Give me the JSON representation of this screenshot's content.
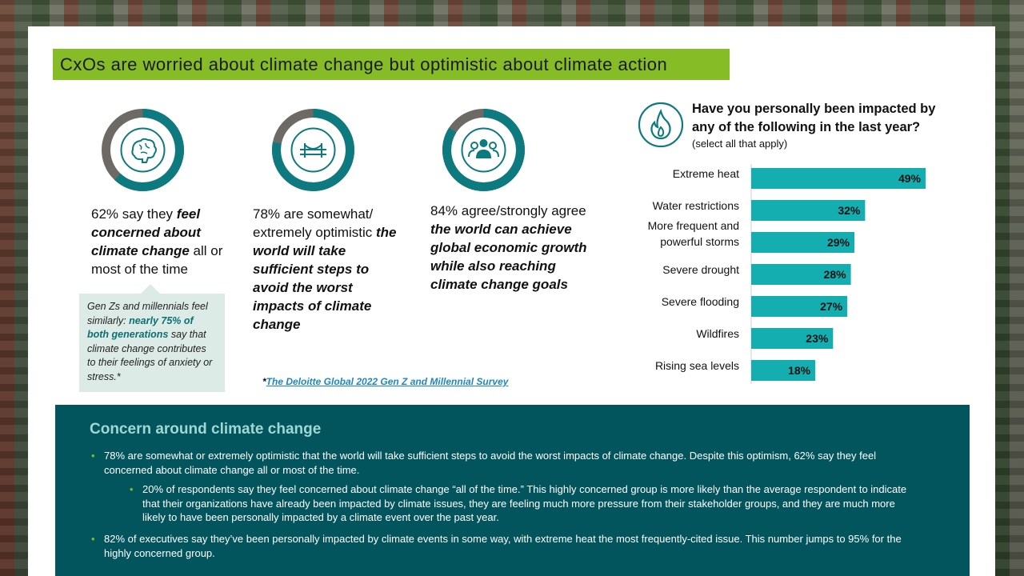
{
  "title": "CxOs are worried about climate change but optimistic about climate action",
  "stats": [
    {
      "pre": "62% say they ",
      "bold": "feel concerned about climate change",
      "post": " all or most of the time",
      "value": 0.62,
      "icon": "brain-icon"
    },
    {
      "pre": "78% are somewhat/ extremely optimistic ",
      "bold": "the world will take sufficient steps to avoid the worst impacts of climate change",
      "post": "",
      "value": 0.78,
      "icon": "bridge-icon"
    },
    {
      "pre": "84% agree/strongly agree ",
      "bold": "the world can achieve global economic growth while also reaching climate change goals",
      "post": "",
      "value": 0.84,
      "icon": "people-icon"
    }
  ],
  "callout": {
    "pre": "Gen Zs and millennials feel similarly: ",
    "highlight": "nearly 75% of both generations",
    "post": " say that climate change contributes to their feelings of anxiety or stress.*"
  },
  "source": {
    "star": "*",
    "link": "The Deloitte Global 2022 Gen Z and Millennial Survey"
  },
  "question": {
    "text": "Have you personally been impacted by any of the following in the last year?",
    "sub": "(select all that apply)",
    "icon": "flame-icon"
  },
  "chart_data": {
    "type": "bar",
    "orientation": "horizontal",
    "categories": [
      "Extreme heat",
      "Water restrictions",
      "More frequent and powerful storms",
      "Severe drought",
      "Severe flooding",
      "Wildfires",
      "Rising sea levels"
    ],
    "values": [
      49,
      32,
      29,
      28,
      27,
      23,
      18
    ],
    "labels": [
      "49%",
      "32%",
      "29%",
      "28%",
      "27%",
      "23%",
      "18%"
    ],
    "title": "",
    "xlabel": "",
    "ylabel": "",
    "color": "#14aeb0"
  },
  "panel": {
    "heading": "Concern around climate change",
    "bullets": [
      "78% are somewhat or extremely optimistic that the world will take sufficient steps to avoid the worst impacts of climate change. Despite this optimism, 62% say they feel concerned about climate change all or most of the time.",
      "20% of respondents say they feel concerned about climate change “all of the time.” This highly concerned group is more likely than the average respondent to indicate that their organizations have already been impacted by climate issues, they are feeling much more pressure from their stakeholder groups, and they are much more likely to have been personally impacted by a climate event over the past year.",
      "82% of executives say they’ve been personally impacted by climate events in some way, with extreme heat the most frequently-cited issue. This number jumps to 95% for the highly concerned group."
    ]
  },
  "colors": {
    "accent": "#86bc25",
    "teal": "#0d7a80",
    "gray": "#6d6a66",
    "panel": "#02545d",
    "bar": "#14aeb0"
  }
}
